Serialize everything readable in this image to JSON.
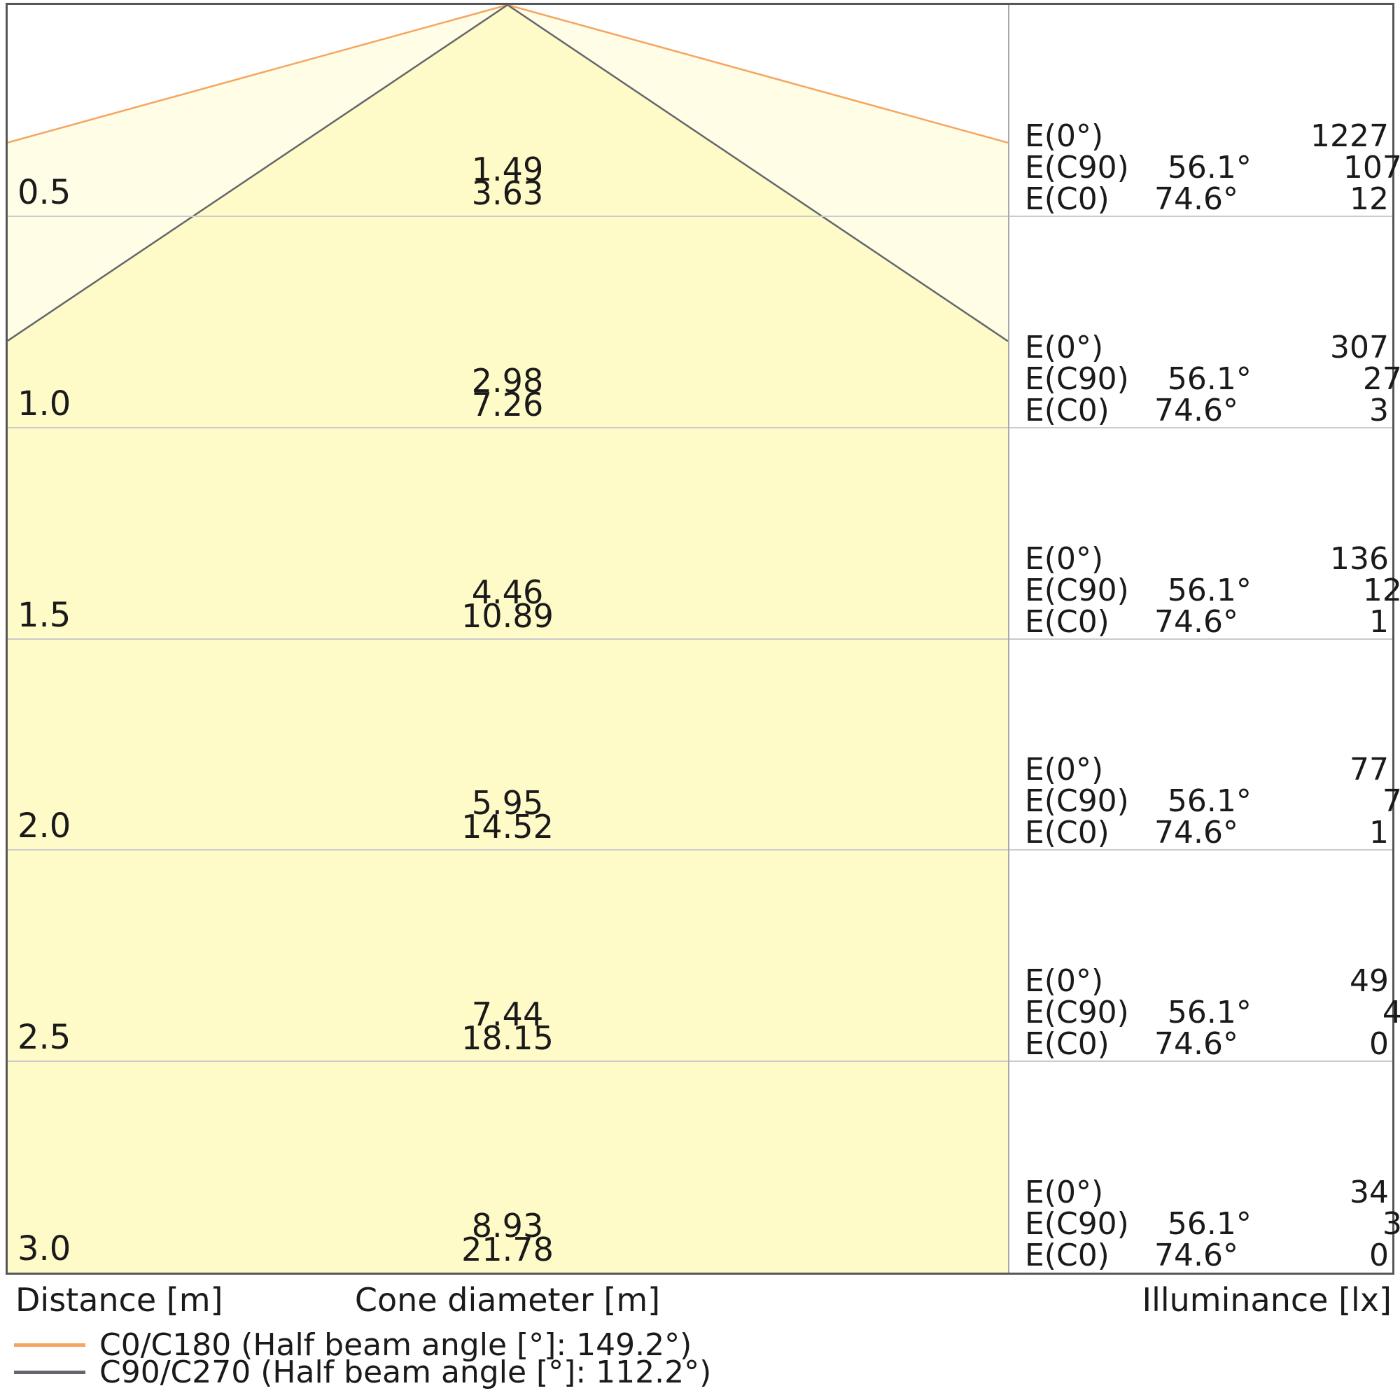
{
  "chart_data": {
    "type": "area",
    "subtype": "photometric-light-cone-diagram",
    "title": "",
    "distance_labels": [
      "0.5",
      "1.0",
      "1.5",
      "2.0",
      "2.5",
      "3.0"
    ],
    "distances_m": [
      0.5,
      1.0,
      1.5,
      2.0,
      2.5,
      3.0
    ],
    "series": [
      {
        "name": "C0/C180",
        "half_beam_angle_deg": 149.2,
        "half_angle_deg": 74.6,
        "cone_diameters_m": [
          "3.63",
          "7.26",
          "10.89",
          "14.52",
          "18.15",
          "21.78"
        ],
        "line_color": "#f5a55f",
        "fill_color": "#fffde5"
      },
      {
        "name": "C90/C270",
        "half_beam_angle_deg": 112.2,
        "half_angle_deg": 56.1,
        "cone_diameters_m": [
          "1.49",
          "2.98",
          "4.46",
          "5.95",
          "7.44",
          "8.93"
        ],
        "line_color": "#63676b",
        "fill_color": "#fffbc8"
      }
    ],
    "illuminance_table": {
      "row_labels": [
        "E(0°)",
        "E(C90)",
        "E(C0)"
      ],
      "angles": [
        "",
        "56.1°",
        "74.6°"
      ],
      "values_by_distance": [
        [
          1227,
          107,
          12
        ],
        [
          307,
          27,
          3
        ],
        [
          136,
          12,
          1
        ],
        [
          77,
          7,
          1
        ],
        [
          49,
          4,
          0
        ],
        [
          34,
          3,
          0
        ]
      ]
    },
    "axis_labels": {
      "distance": "Distance [m]",
      "cone_diameter": "Cone diameter [m]",
      "illuminance": "Illuminance [lx]"
    },
    "legend": [
      {
        "label": "C0/C180 (Half beam angle [°]: 149.2°)",
        "color": "#f5a55f"
      },
      {
        "label": "C90/C270 (Half beam angle [°]: 112.2°)",
        "color": "#63676b"
      }
    ],
    "layout_hints": {
      "rows": 6,
      "grid": "horizontal lines at each 0.5 m step",
      "legend_position": "bottom-left",
      "value_panel_position": "right"
    }
  }
}
